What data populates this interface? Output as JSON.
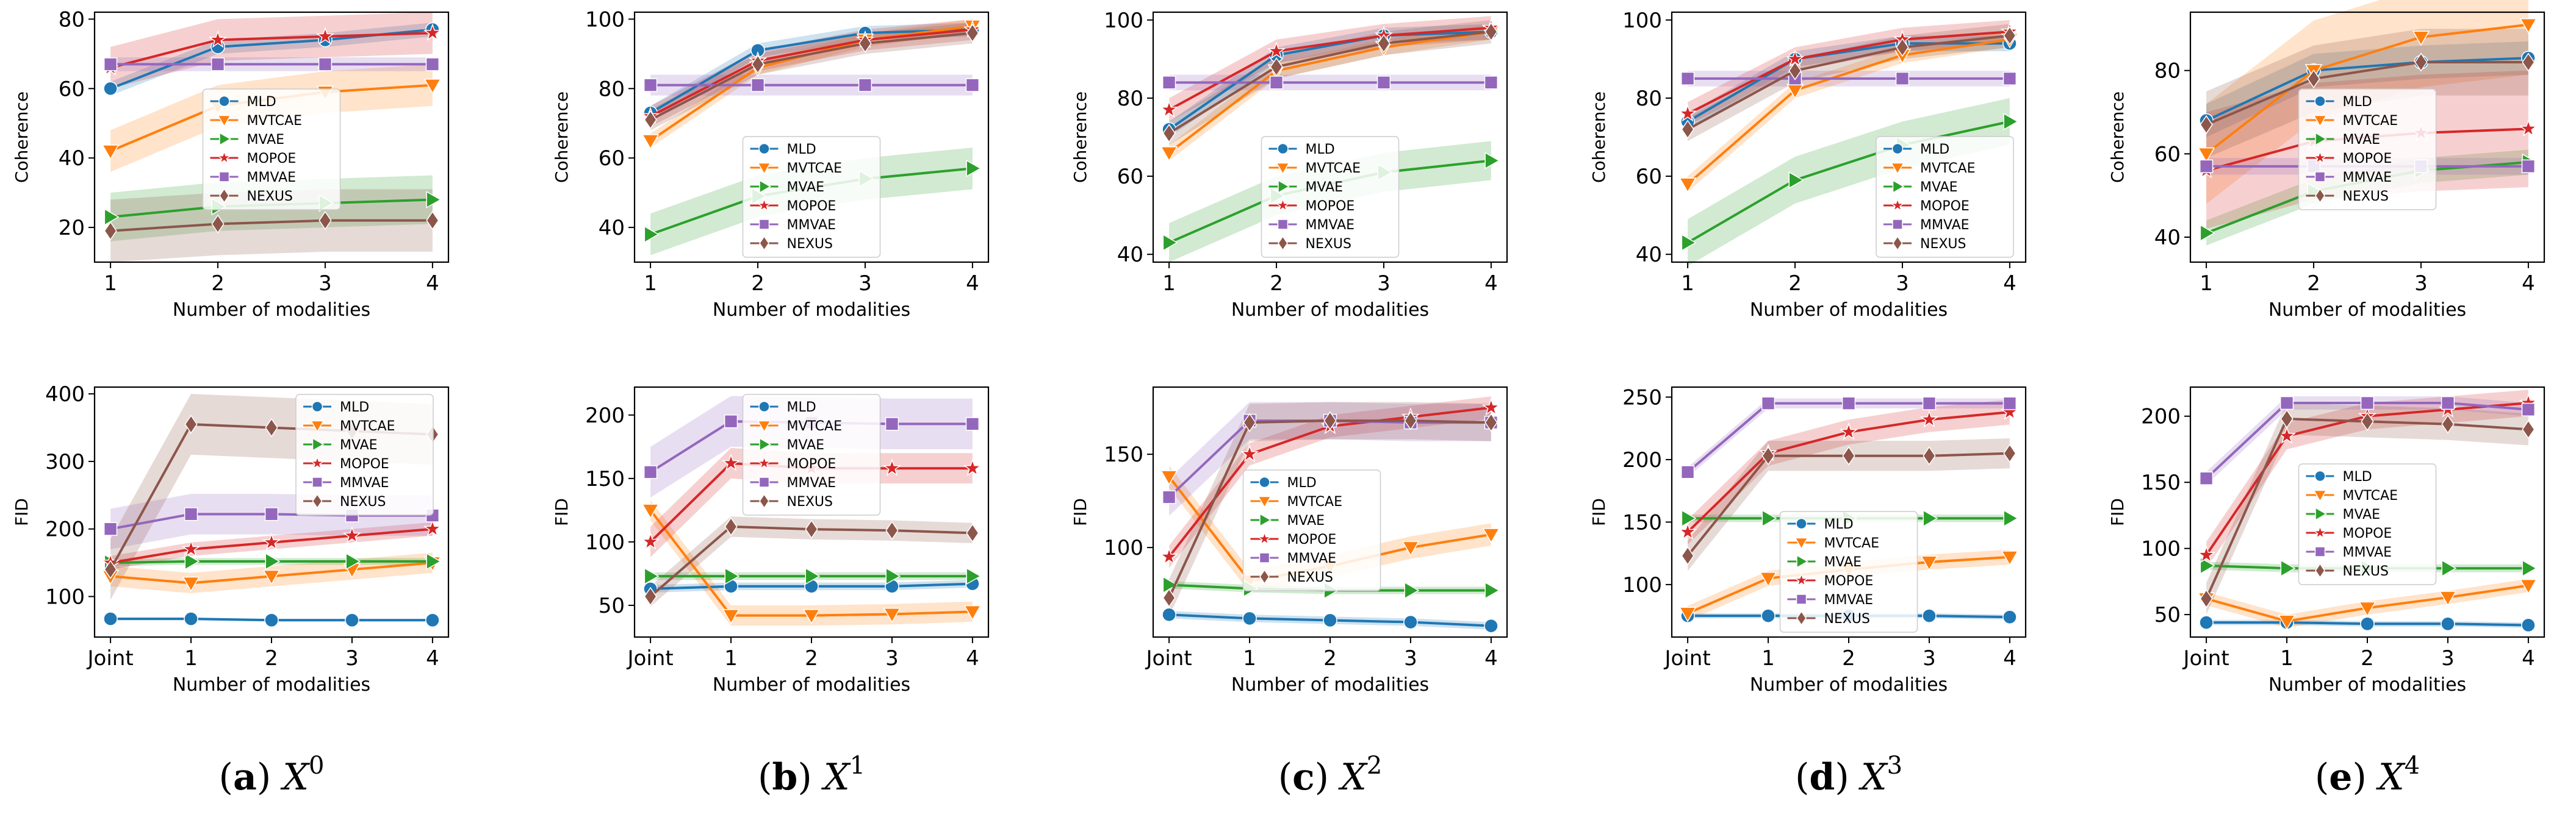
{
  "legend_colors": {
    "MLD": "#1f77b4",
    "MVTCAE": "#ff7f0e",
    "MVAE": "#2ca02c",
    "MOPOE": "#d62728",
    "MMVAE": "#9467bd",
    "NEXUS": "#8c564b"
  },
  "methods": [
    "MLD",
    "MVTCAE",
    "MVAE",
    "MOPOE",
    "MMVAE",
    "NEXUS"
  ],
  "markers": {
    "MLD": "circle",
    "MVTCAE": "triangle-down",
    "MVAE": "triangle-right",
    "MOPOE": "star",
    "MMVAE": "square",
    "NEXUS": "diamond"
  },
  "panels": [
    {
      "label": "a",
      "symbol": "X",
      "superscript": "0"
    },
    {
      "label": "b",
      "symbol": "X",
      "superscript": "1"
    },
    {
      "label": "c",
      "symbol": "X",
      "superscript": "2"
    },
    {
      "label": "d",
      "symbol": "X",
      "superscript": "3"
    },
    {
      "label": "e",
      "symbol": "X",
      "superscript": "4"
    }
  ],
  "chart_data": [
    {
      "type": "line",
      "panel": "a",
      "row": "coherence",
      "xlabel": "Number of modalities",
      "ylabel": "Coherence",
      "categories": [
        "1",
        "2",
        "3",
        "4"
      ],
      "ylim": [
        10,
        82
      ],
      "yticks": [
        20,
        40,
        60,
        80
      ],
      "legend": "center",
      "series": [
        {
          "name": "MLD",
          "values": [
            60,
            72,
            74,
            77
          ],
          "band": 2
        },
        {
          "name": "MVTCAE",
          "values": [
            42,
            55,
            59,
            61
          ],
          "band": 6
        },
        {
          "name": "MVAE",
          "values": [
            23,
            26,
            27,
            28
          ],
          "band": 7
        },
        {
          "name": "MOPOE",
          "values": [
            66,
            74,
            75,
            76
          ],
          "band": 6
        },
        {
          "name": "MMVAE",
          "values": [
            67,
            67,
            67,
            67
          ],
          "band": 2
        },
        {
          "name": "NEXUS",
          "values": [
            19,
            21,
            22,
            22
          ],
          "band": 9
        }
      ]
    },
    {
      "type": "line",
      "panel": "b",
      "row": "coherence",
      "xlabel": "Number of modalities",
      "ylabel": "Coherence",
      "categories": [
        "1",
        "2",
        "3",
        "4"
      ],
      "ylim": [
        30,
        102
      ],
      "yticks": [
        40,
        60,
        80,
        100
      ],
      "legend": "lower-center",
      "series": [
        {
          "name": "MLD",
          "values": [
            73,
            91,
            96,
            97
          ],
          "band": 2
        },
        {
          "name": "MVTCAE",
          "values": [
            65,
            86,
            94,
            98
          ],
          "band": 2
        },
        {
          "name": "MVAE",
          "values": [
            38,
            49,
            54,
            57
          ],
          "band": 6
        },
        {
          "name": "MOPOE",
          "values": [
            72,
            88,
            94,
            97
          ],
          "band": 3
        },
        {
          "name": "MMVAE",
          "values": [
            81,
            81,
            81,
            81
          ],
          "band": 3
        },
        {
          "name": "NEXUS",
          "values": [
            71,
            87,
            93,
            96
          ],
          "band": 3
        }
      ]
    },
    {
      "type": "line",
      "panel": "c",
      "row": "coherence",
      "xlabel": "Number of modalities",
      "ylabel": "Coherence",
      "categories": [
        "1",
        "2",
        "3",
        "4"
      ],
      "ylim": [
        38,
        102
      ],
      "yticks": [
        40,
        60,
        80,
        100
      ],
      "legend": "lower-center",
      "series": [
        {
          "name": "MLD",
          "values": [
            72,
            91,
            96,
            97
          ],
          "band": 2
        },
        {
          "name": "MVTCAE",
          "values": [
            66,
            87,
            93,
            97
          ],
          "band": 2
        },
        {
          "name": "MVAE",
          "values": [
            43,
            55,
            61,
            64
          ],
          "band": 5
        },
        {
          "name": "MOPOE",
          "values": [
            77,
            92,
            96,
            98
          ],
          "band": 3
        },
        {
          "name": "MMVAE",
          "values": [
            84,
            84,
            84,
            84
          ],
          "band": 2
        },
        {
          "name": "NEXUS",
          "values": [
            71,
            88,
            94,
            97
          ],
          "band": 3
        }
      ]
    },
    {
      "type": "line",
      "panel": "d",
      "row": "coherence",
      "xlabel": "Number of modalities",
      "ylabel": "Coherence",
      "categories": [
        "1",
        "2",
        "3",
        "4"
      ],
      "ylim": [
        38,
        102
      ],
      "yticks": [
        40,
        60,
        80,
        100
      ],
      "legend": "lower-right",
      "series": [
        {
          "name": "MLD",
          "values": [
            74,
            90,
            94,
            94
          ],
          "band": 2
        },
        {
          "name": "MVTCAE",
          "values": [
            58,
            82,
            91,
            95
          ],
          "band": 2
        },
        {
          "name": "MVAE",
          "values": [
            43,
            59,
            68,
            74
          ],
          "band": 6
        },
        {
          "name": "MOPOE",
          "values": [
            76,
            90,
            95,
            97
          ],
          "band": 3
        },
        {
          "name": "MMVAE",
          "values": [
            85,
            85,
            85,
            85
          ],
          "band": 2
        },
        {
          "name": "NEXUS",
          "values": [
            72,
            87,
            93,
            96
          ],
          "band": 3
        }
      ]
    },
    {
      "type": "line",
      "panel": "e",
      "row": "coherence",
      "xlabel": "Number of modalities",
      "ylabel": "Coherence",
      "categories": [
        "1",
        "2",
        "3",
        "4"
      ],
      "ylim": [
        34,
        94
      ],
      "yticks": [
        40,
        60,
        80
      ],
      "legend": "center",
      "series": [
        {
          "name": "MLD",
          "values": [
            68,
            80,
            82,
            83
          ],
          "band": 4
        },
        {
          "name": "MVTCAE",
          "values": [
            60,
            80,
            88,
            91
          ],
          "band": 12
        },
        {
          "name": "MVAE",
          "values": [
            41,
            51,
            56,
            58
          ],
          "band": 3
        },
        {
          "name": "MOPOE",
          "values": [
            56,
            63,
            65,
            66
          ],
          "band": 14
        },
        {
          "name": "MMVAE",
          "values": [
            57,
            57,
            57,
            57
          ],
          "band": 2
        },
        {
          "name": "NEXUS",
          "values": [
            67,
            78,
            82,
            82
          ],
          "band": 8
        }
      ]
    },
    {
      "type": "line",
      "panel": "a",
      "row": "fid",
      "xlabel": "Number of modalities",
      "ylabel": "FID",
      "categories": [
        "Joint",
        "1",
        "2",
        "3",
        "4"
      ],
      "ylim": [
        40,
        410
      ],
      "yticks": [
        100,
        200,
        300,
        400
      ],
      "legend": "upper-right",
      "series": [
        {
          "name": "MLD",
          "values": [
            67,
            67,
            65,
            65,
            65
          ],
          "band": 2
        },
        {
          "name": "MVTCAE",
          "values": [
            130,
            120,
            130,
            140,
            150
          ],
          "band": 15
        },
        {
          "name": "MVAE",
          "values": [
            150,
            152,
            152,
            152,
            152
          ],
          "band": 5
        },
        {
          "name": "MOPOE",
          "values": [
            150,
            170,
            180,
            190,
            200
          ],
          "band": 10
        },
        {
          "name": "MMVAE",
          "values": [
            200,
            222,
            222,
            220,
            220
          ],
          "band": 30
        },
        {
          "name": "NEXUS",
          "values": [
            140,
            355,
            350,
            345,
            340
          ],
          "band": 45
        }
      ]
    },
    {
      "type": "line",
      "panel": "b",
      "row": "fid",
      "xlabel": "Number of modalities",
      "ylabel": "FID",
      "categories": [
        "Joint",
        "1",
        "2",
        "3",
        "4"
      ],
      "ylim": [
        25,
        222
      ],
      "yticks": [
        50,
        100,
        150,
        200
      ],
      "legend": "upper-center",
      "series": [
        {
          "name": "MLD",
          "values": [
            63,
            65,
            65,
            65,
            67
          ],
          "band": 3
        },
        {
          "name": "MVTCAE",
          "values": [
            125,
            42,
            42,
            43,
            45
          ],
          "band": 8
        },
        {
          "name": "MVAE",
          "values": [
            73,
            73,
            73,
            73,
            73
          ],
          "band": 3
        },
        {
          "name": "MOPOE",
          "values": [
            100,
            162,
            158,
            158,
            158
          ],
          "band": 12
        },
        {
          "name": "MMVAE",
          "values": [
            155,
            195,
            194,
            193,
            193
          ],
          "band": 20
        },
        {
          "name": "NEXUS",
          "values": [
            57,
            112,
            110,
            109,
            107
          ],
          "band": 8
        }
      ]
    },
    {
      "type": "line",
      "panel": "c",
      "row": "fid",
      "xlabel": "Number of modalities",
      "ylabel": "FID",
      "categories": [
        "Joint",
        "1",
        "2",
        "3",
        "4"
      ],
      "ylim": [
        52,
        186
      ],
      "yticks": [
        100,
        150
      ],
      "legend": "left-center",
      "series": [
        {
          "name": "MLD",
          "values": [
            64,
            62,
            61,
            60,
            58
          ],
          "band": 2
        },
        {
          "name": "MVTCAE",
          "values": [
            138,
            82,
            90,
            100,
            107
          ],
          "band": 6
        },
        {
          "name": "MVAE",
          "values": [
            80,
            78,
            77,
            77,
            77
          ],
          "band": 2
        },
        {
          "name": "MOPOE",
          "values": [
            95,
            150,
            165,
            170,
            175
          ],
          "band": 6
        },
        {
          "name": "MMVAE",
          "values": [
            127,
            168,
            168,
            167,
            167
          ],
          "band": 10
        },
        {
          "name": "NEXUS",
          "values": [
            73,
            167,
            168,
            168,
            167
          ],
          "band": 10
        }
      ]
    },
    {
      "type": "line",
      "panel": "d",
      "row": "fid",
      "xlabel": "Number of modalities",
      "ylabel": "FID",
      "categories": [
        "Joint",
        "1",
        "2",
        "3",
        "4"
      ],
      "ylim": [
        58,
        258
      ],
      "yticks": [
        100,
        150,
        200,
        250
      ],
      "legend": "lower-center",
      "series": [
        {
          "name": "MLD",
          "values": [
            75,
            75,
            75,
            75,
            74
          ],
          "band": 2
        },
        {
          "name": "MVTCAE",
          "values": [
            77,
            105,
            112,
            118,
            122
          ],
          "band": 6
        },
        {
          "name": "MVAE",
          "values": [
            153,
            153,
            153,
            153,
            153
          ],
          "band": 3
        },
        {
          "name": "MOPOE",
          "values": [
            142,
            205,
            222,
            232,
            238
          ],
          "band": 10
        },
        {
          "name": "MMVAE",
          "values": [
            190,
            245,
            245,
            245,
            245
          ],
          "band": 4
        },
        {
          "name": "NEXUS",
          "values": [
            123,
            203,
            203,
            203,
            205
          ],
          "band": 12
        }
      ]
    },
    {
      "type": "line",
      "panel": "e",
      "row": "fid",
      "xlabel": "Number of modalities",
      "ylabel": "FID",
      "categories": [
        "Joint",
        "1",
        "2",
        "3",
        "4"
      ],
      "ylim": [
        33,
        222
      ],
      "yticks": [
        50,
        100,
        150,
        200
      ],
      "legend": "center",
      "series": [
        {
          "name": "MLD",
          "values": [
            44,
            44,
            43,
            43,
            42
          ],
          "band": 2
        },
        {
          "name": "MVTCAE",
          "values": [
            62,
            45,
            55,
            63,
            72
          ],
          "band": 5
        },
        {
          "name": "MVAE",
          "values": [
            87,
            85,
            85,
            85,
            85
          ],
          "band": 3
        },
        {
          "name": "MOPOE",
          "values": [
            95,
            185,
            200,
            205,
            210
          ],
          "band": 10
        },
        {
          "name": "MMVAE",
          "values": [
            153,
            210,
            210,
            210,
            205
          ],
          "band": 5
        },
        {
          "name": "NEXUS",
          "values": [
            62,
            198,
            196,
            194,
            190
          ],
          "band": 12
        }
      ]
    }
  ]
}
